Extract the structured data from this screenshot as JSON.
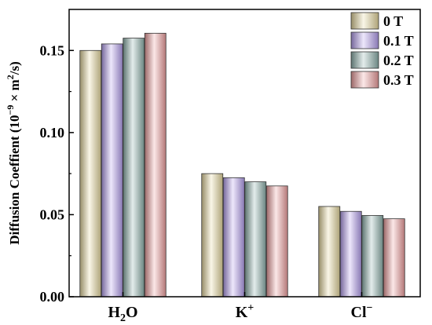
{
  "chart_data": {
    "type": "bar",
    "categories": [
      "H2O",
      "K+",
      "Cl−"
    ],
    "category_display": [
      {
        "base": "H",
        "sub": "2",
        "rest": "O",
        "sup": ""
      },
      {
        "base": "K",
        "sub": "",
        "rest": "",
        "sup": "+"
      },
      {
        "base": "Cl",
        "sub": "",
        "rest": "",
        "sup": "−"
      }
    ],
    "series": [
      {
        "name": "0 T",
        "values": [
          0.15,
          0.075,
          0.055
        ],
        "color": "#e8d9a0"
      },
      {
        "name": "0.1 T",
        "values": [
          0.154,
          0.0725,
          0.052
        ],
        "color": "#b5a0f0"
      },
      {
        "name": "0.2 T",
        "values": [
          0.1575,
          0.07,
          0.0495
        ],
        "color": "#8fb3ad"
      },
      {
        "name": "0.3 T",
        "values": [
          0.1605,
          0.0675,
          0.0475
        ],
        "color": "#f0a0a0"
      }
    ],
    "ylabel": {
      "text": "Diffusion Coeffient (10",
      "sup": "−9",
      "mid": " × m",
      "sup2": "2",
      "end": "/s)"
    },
    "xlabel": "",
    "ylim": [
      0.0,
      0.175
    ],
    "yticks": [
      "0.00",
      "0.05",
      "0.10",
      "0.15"
    ],
    "ytick_values": [
      0.0,
      0.05,
      0.1,
      0.15
    ],
    "grid": false,
    "legend_position": "top-right"
  }
}
